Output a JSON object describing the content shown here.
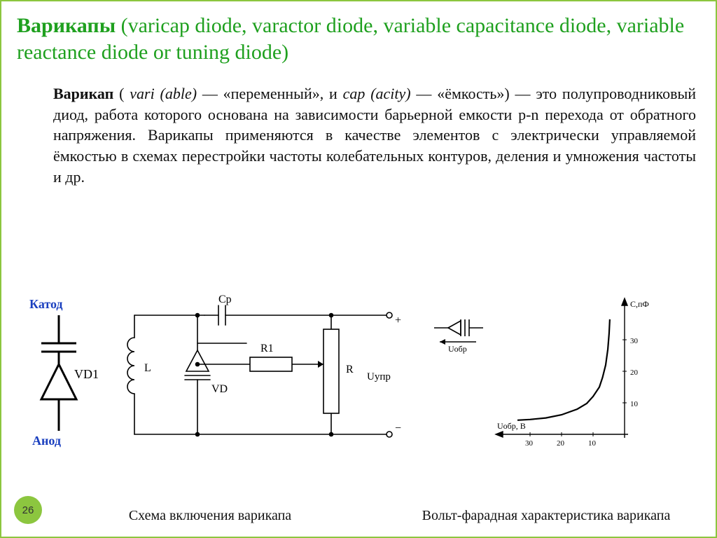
{
  "page_number": "26",
  "title": {
    "lead": "Варикапы",
    "rest": " (varicap diode, varactor diode, variable capacitance diode, variable reactance diode or tuning diode)"
  },
  "body": {
    "lead_bold": "Варикап",
    "def_part1": " ( ",
    "ital1": "vari (able)",
    "def_part2": " — «переменный», и ",
    "ital2": "cap (acity)",
    "def_part3": " — «ёмкость») — это полупроводниковый диод, работа которого основана на зависимости барьерной емкости p-n перехода от обратного напряжения. Варикапы применяются в качестве элементов с электрически управляемой ёмкостью в схемах перестройки частоты колебательных контуров, деления и умножения частоты и др."
  },
  "symbol_diagram": {
    "cathode_label": "Катод",
    "anode_label": "Анод",
    "refdes": "VD1",
    "label_color": "#1a3fbf",
    "stroke": "#000000"
  },
  "circuit_diagram": {
    "labels": {
      "L": "L",
      "Cp": "Cр",
      "R1": "R1",
      "R": "R",
      "VD": "VD",
      "Uctrl": "Uупр",
      "plus": "+",
      "minus": "−"
    },
    "stroke": "#000000",
    "line_width": 1.6
  },
  "vc_chart": {
    "type": "line",
    "y_label": "С,пФ",
    "x_label": "Uобр, В",
    "arrow_label": "Uобр",
    "x_ticks": [
      30,
      20,
      10
    ],
    "y_ticks": [
      10,
      20,
      30
    ],
    "xlim": [
      35,
      0
    ],
    "ylim": [
      0,
      38
    ],
    "curve_points": [
      [
        34,
        4.5
      ],
      [
        30,
        4.7
      ],
      [
        25,
        5.2
      ],
      [
        20,
        6.2
      ],
      [
        15,
        8.0
      ],
      [
        12,
        9.8
      ],
      [
        10,
        12.0
      ],
      [
        8,
        15.0
      ],
      [
        7,
        18.0
      ],
      [
        6,
        22.0
      ],
      [
        5.3,
        27.0
      ],
      [
        4.9,
        32.0
      ],
      [
        4.7,
        36.5
      ]
    ],
    "axis_color": "#000000",
    "tick_color": "#000000",
    "curve_color": "#000000",
    "curve_width": 2.2,
    "tick_fontsize": 11,
    "label_fontsize": 12
  },
  "varicap_symbol_mini": {
    "stroke": "#000000"
  },
  "captions": {
    "left": "Схема включения варикапа",
    "right": "Вольт-фарадная характеристика варикапа"
  }
}
